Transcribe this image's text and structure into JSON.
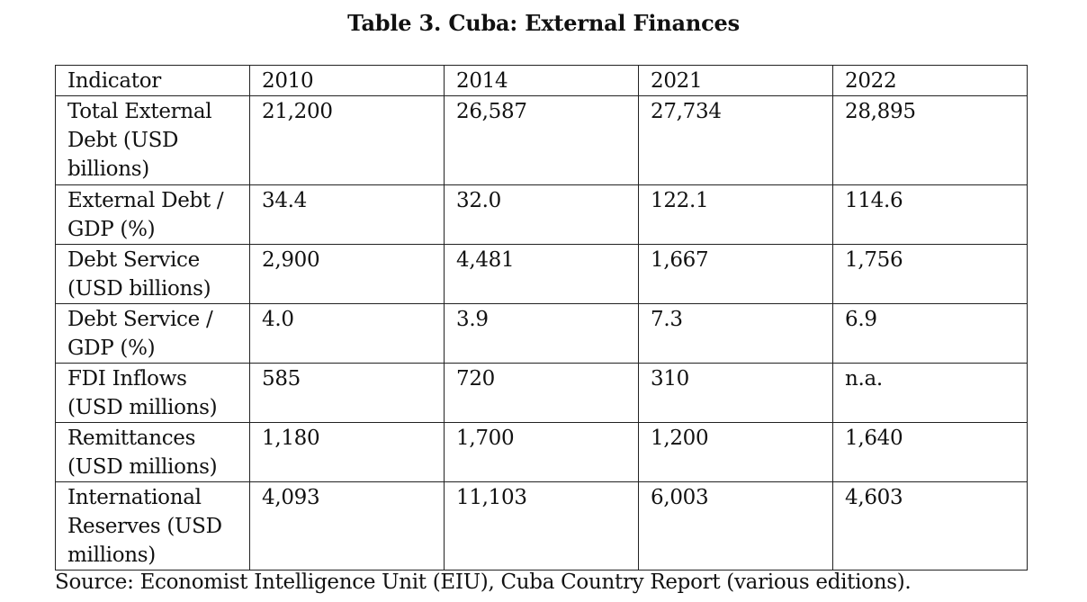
{
  "title": "Table 3. Cuba: External Finances",
  "table": {
    "headers": [
      "Indicator",
      "2010",
      "2014",
      "2021",
      "2022"
    ],
    "rows": [
      [
        "Total External Debt (USD billions)",
        "21,200",
        "26,587",
        "27,734",
        "28,895"
      ],
      [
        "External Debt / GDP (%)",
        "34.4",
        "32.0",
        "122.1",
        "114.6"
      ],
      [
        "Debt Service (USD billions)",
        "2,900",
        "4,481",
        "1,667",
        "1,756"
      ],
      [
        "Debt Service / GDP (%)",
        "4.0",
        "3.9",
        "7.3",
        "6.9"
      ],
      [
        "FDI Inflows (USD millions)",
        "585",
        "720",
        "310",
        "n.a."
      ],
      [
        "Remittances (USD millions)",
        "1,180",
        "1,700",
        "1,200",
        "1,640"
      ],
      [
        "International Reserves (USD millions)",
        "4,093",
        "11,103",
        "6,003",
        "4,603"
      ]
    ]
  },
  "source": "Source: Economist Intelligence Unit (EIU), Cuba Country Report (various editions)."
}
